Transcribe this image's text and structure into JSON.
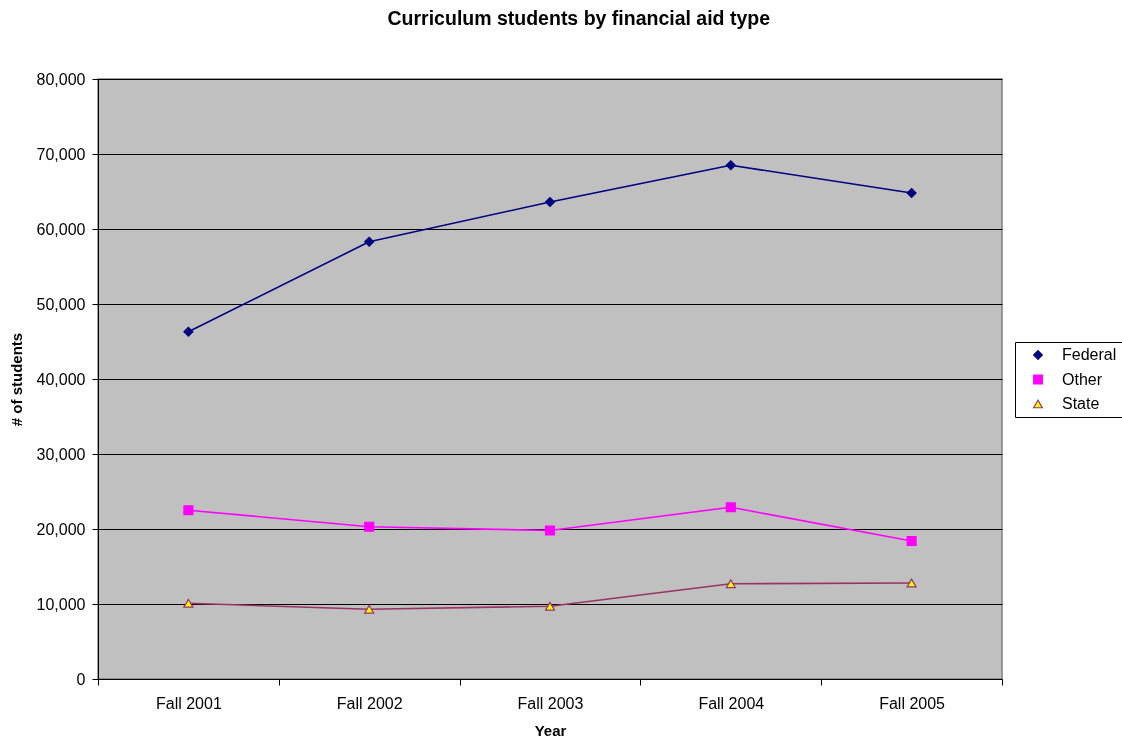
{
  "chart_data": {
    "type": "line",
    "title": "Curriculum students by financial aid type",
    "xlabel": "Year",
    "ylabel": "# of students",
    "categories": [
      "Fall 2001",
      "Fall 2002",
      "Fall 2003",
      "Fall 2004",
      "Fall 2005"
    ],
    "series": [
      {
        "name": "Federal",
        "color": "#000080",
        "marker": "diamond",
        "values": [
          46300,
          58300,
          63600,
          68500,
          64800
        ]
      },
      {
        "name": "Other",
        "color": "#ff00ff",
        "marker": "square",
        "values": [
          22500,
          20300,
          19800,
          22900,
          18400
        ]
      },
      {
        "name": "State",
        "color": "#993366",
        "marker": "triangle",
        "values": [
          10100,
          9300,
          9700,
          12700,
          12800
        ]
      }
    ],
    "ylim": [
      0,
      80000
    ],
    "yticks": [
      0,
      {
        "value": 10000,
        "label": "10,000"
      },
      {
        "value": 20000,
        "label": "20,000"
      },
      {
        "value": 30000,
        "label": "30,000"
      },
      {
        "value": 40000,
        "label": "40,000"
      },
      {
        "value": 50000,
        "label": "50,000"
      },
      {
        "value": 60000,
        "label": "60,000"
      },
      {
        "value": 70000,
        "label": "70,000"
      },
      {
        "value": 80000,
        "label": "80,000"
      }
    ],
    "grid": "y",
    "legend": "right",
    "line_style": "solid"
  }
}
